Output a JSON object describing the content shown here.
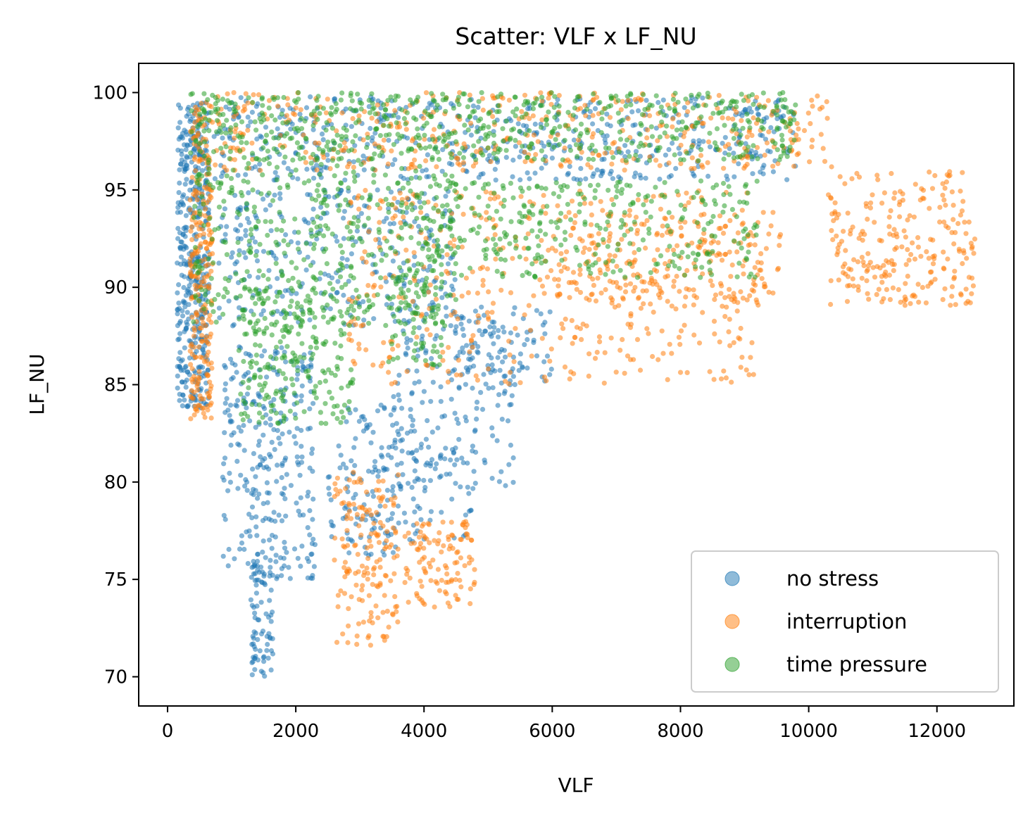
{
  "chart_data": {
    "type": "scatter",
    "title": "Scatter: VLF x LF_NU",
    "xlabel": "VLF",
    "ylabel": "LF_NU",
    "xlim": [
      -450,
      13200
    ],
    "ylim": [
      68.5,
      101.5
    ],
    "xticks": [
      0,
      2000,
      4000,
      6000,
      8000,
      10000,
      12000
    ],
    "xtick_labels": [
      "0",
      "2000",
      "4000",
      "6000",
      "8000",
      "10000",
      "12000"
    ],
    "yticks": [
      70,
      75,
      80,
      85,
      90,
      95,
      100
    ],
    "ytick_labels": [
      "70",
      "75",
      "80",
      "85",
      "90",
      "95",
      "100"
    ],
    "grid": false,
    "legend_position": "lower-right",
    "series": [
      {
        "name": "no stress",
        "color": "#1f77b4",
        "clusters": [
          {
            "x": [
              150,
              650
            ],
            "y": [
              83.8,
              99.5
            ],
            "n": 420
          },
          {
            "x": [
              700,
              9800
            ],
            "y": [
              95.5,
              99.8
            ],
            "n": 520
          },
          {
            "x": [
              800,
              4500
            ],
            "y": [
              88,
              95
            ],
            "n": 300
          },
          {
            "x": [
              850,
              2300
            ],
            "y": [
              75,
              87
            ],
            "n": 280
          },
          {
            "x": [
              1300,
              1650
            ],
            "y": [
              70,
              76
            ],
            "n": 80
          },
          {
            "x": [
              2700,
              3900
            ],
            "y": [
              76,
              84
            ],
            "n": 110
          },
          {
            "x": [
              3500,
              5400
            ],
            "y": [
              79.5,
              88
            ],
            "n": 150
          },
          {
            "x": [
              4500,
              6000
            ],
            "y": [
              85,
              89
            ],
            "n": 90
          },
          {
            "x": [
              2500,
              4800
            ],
            "y": [
              77,
              82
            ],
            "n": 80
          }
        ]
      },
      {
        "name": "interruption",
        "color": "#ff7f0e",
        "clusters": [
          {
            "x": [
              350,
              700
            ],
            "y": [
              83.2,
              99.5
            ],
            "n": 260
          },
          {
            "x": [
              700,
              10400
            ],
            "y": [
              96,
              100
            ],
            "n": 420
          },
          {
            "x": [
              2800,
              9200
            ],
            "y": [
              85,
              95
            ],
            "n": 420
          },
          {
            "x": [
              6000,
              9600
            ],
            "y": [
              89,
              94
            ],
            "n": 220
          },
          {
            "x": [
              10300,
              12600
            ],
            "y": [
              89,
              96
            ],
            "n": 240
          },
          {
            "x": [
              2600,
              3600
            ],
            "y": [
              71.5,
              80.5
            ],
            "n": 160
          },
          {
            "x": [
              3700,
              4800
            ],
            "y": [
              73.5,
              78
            ],
            "n": 110
          }
        ]
      },
      {
        "name": "time pressure",
        "color": "#2ca02c",
        "clusters": [
          {
            "x": [
              350,
              9800
            ],
            "y": [
              96.5,
              100
            ],
            "n": 620
          },
          {
            "x": [
              400,
              4500
            ],
            "y": [
              88,
              96.5
            ],
            "n": 420
          },
          {
            "x": [
              1100,
              2900
            ],
            "y": [
              83,
              90
            ],
            "n": 220
          },
          {
            "x": [
              4000,
              9200
            ],
            "y": [
              90.5,
              95.5
            ],
            "n": 320
          },
          {
            "x": [
              3400,
              4300
            ],
            "y": [
              86,
              91
            ],
            "n": 80
          }
        ]
      }
    ]
  }
}
